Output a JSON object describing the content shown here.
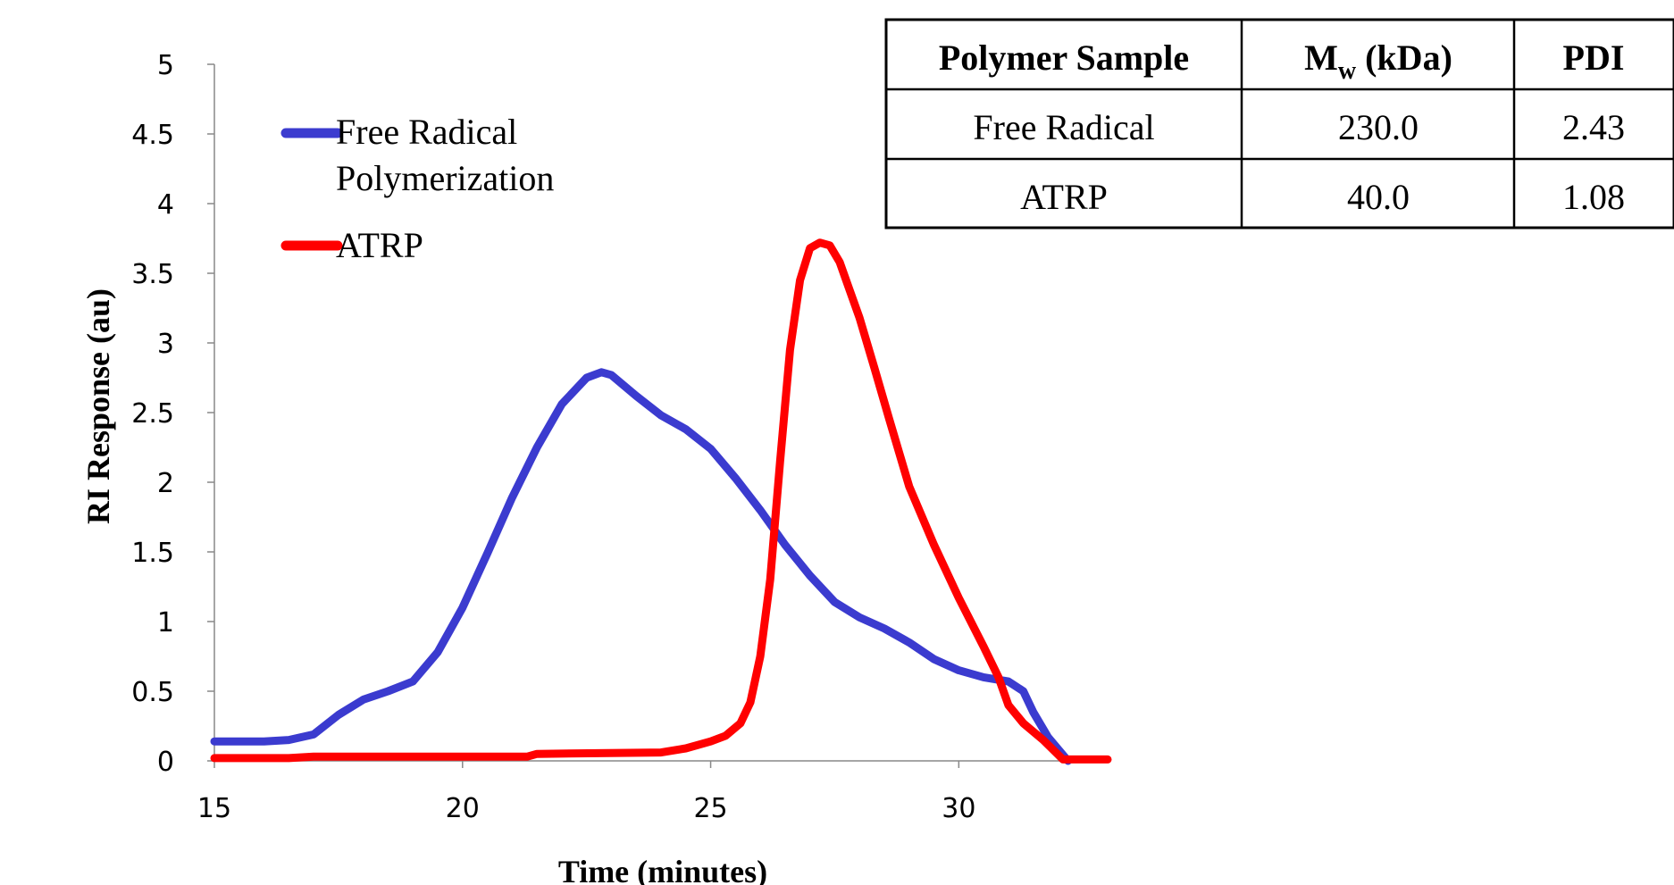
{
  "chart_data": {
    "type": "line",
    "xlabel": "Time (minutes)",
    "ylabel": "RI Response (au)",
    "xlim": [
      15,
      33
    ],
    "ylim": [
      0,
      5
    ],
    "x_ticks": [
      "15",
      "20",
      "25",
      "30"
    ],
    "y_ticks": [
      "0",
      "0.5",
      "1",
      "1.5",
      "2",
      "2.5",
      "3",
      "3.5",
      "4",
      "4.5",
      "5"
    ],
    "grid": false,
    "legend_position": "top-left",
    "series": [
      {
        "name": "Free Radical Polymerization",
        "legend_lines": [
          "Free Radical",
          "Polymerization"
        ],
        "color": "#3b3bcf",
        "x": [
          15.0,
          16.0,
          16.5,
          17.0,
          17.5,
          18.0,
          18.5,
          19.0,
          19.5,
          20.0,
          20.5,
          21.0,
          21.5,
          22.0,
          22.5,
          22.8,
          23.0,
          23.5,
          24.0,
          24.5,
          25.0,
          25.5,
          26.0,
          26.5,
          27.0,
          27.5,
          28.0,
          28.5,
          29.0,
          29.5,
          30.0,
          30.5,
          31.0,
          31.3,
          31.5,
          31.8,
          32.2
        ],
        "y": [
          0.14,
          0.14,
          0.15,
          0.19,
          0.33,
          0.44,
          0.5,
          0.57,
          0.78,
          1.1,
          1.49,
          1.89,
          2.25,
          2.56,
          2.75,
          2.79,
          2.77,
          2.62,
          2.48,
          2.38,
          2.24,
          2.03,
          1.8,
          1.55,
          1.33,
          1.14,
          1.03,
          0.95,
          0.85,
          0.73,
          0.65,
          0.6,
          0.57,
          0.5,
          0.35,
          0.17,
          0.0
        ]
      },
      {
        "name": "ATRP",
        "legend_lines": [
          "ATRP"
        ],
        "color": "#ff0000",
        "x": [
          15.0,
          16.5,
          17.0,
          20.0,
          21.3,
          21.5,
          24.0,
          24.5,
          25.0,
          25.3,
          25.6,
          25.8,
          26.0,
          26.2,
          26.4,
          26.6,
          26.8,
          27.0,
          27.2,
          27.4,
          27.6,
          27.8,
          28.0,
          28.3,
          28.6,
          29.0,
          29.5,
          30.0,
          30.5,
          30.8,
          31.0,
          31.3,
          31.7,
          32.1,
          33.0
        ],
        "y": [
          0.02,
          0.02,
          0.03,
          0.03,
          0.03,
          0.05,
          0.06,
          0.09,
          0.14,
          0.18,
          0.27,
          0.42,
          0.75,
          1.3,
          2.15,
          2.95,
          3.45,
          3.68,
          3.72,
          3.7,
          3.58,
          3.38,
          3.18,
          2.82,
          2.45,
          1.97,
          1.55,
          1.17,
          0.82,
          0.6,
          0.4,
          0.27,
          0.15,
          0.01,
          0.01
        ]
      }
    ],
    "table": {
      "headers": [
        "Polymer Sample",
        "M",
        "w",
        " (kDa)",
        "PDI"
      ],
      "rows": [
        [
          "Free Radical",
          "230.0",
          "2.43"
        ],
        [
          "ATRP",
          "40.0",
          "1.08"
        ]
      ]
    }
  }
}
